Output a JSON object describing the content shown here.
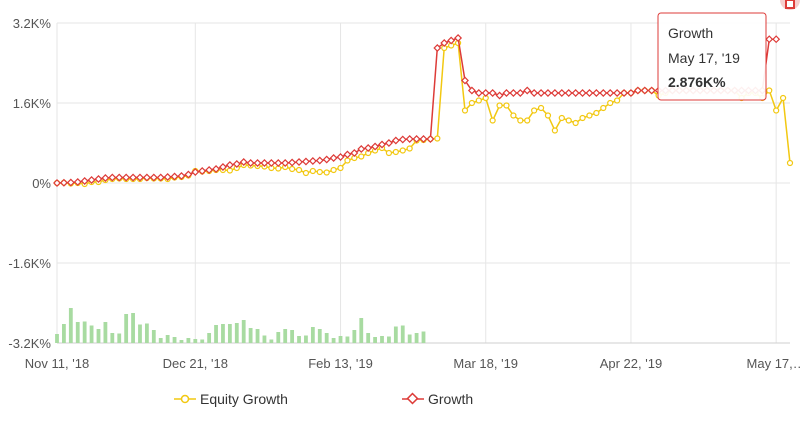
{
  "chart_data": {
    "type": "line",
    "y_ticks": [
      "3.2K%",
      "1.6K%",
      "0%",
      "-1.6K%",
      "-3.2K%"
    ],
    "y_tick_values": [
      3200,
      1600,
      0,
      -1600,
      -3200
    ],
    "ylim": [
      -3200,
      3200
    ],
    "x_ticks": [
      "Nov 11, '18",
      "Dec 21, '18",
      "Feb 13, '19",
      "Mar 18, '19",
      "Apr 22, '19",
      "May 17,…"
    ],
    "x_tick_index": [
      0,
      20,
      41,
      62,
      83,
      104
    ],
    "grid": true,
    "legend_placement": "bottom-center",
    "series": [
      {
        "name": "Equity Growth",
        "color": "#f2c811",
        "values": [
          0,
          5,
          -10,
          0,
          -20,
          20,
          20,
          60,
          80,
          90,
          80,
          80,
          80,
          100,
          90,
          90,
          80,
          110,
          120,
          150,
          240,
          230,
          240,
          260,
          260,
          250,
          300,
          360,
          350,
          340,
          330,
          300,
          290,
          320,
          280,
          260,
          200,
          240,
          220,
          210,
          260,
          300,
          450,
          500,
          530,
          600,
          650,
          700,
          600,
          620,
          650,
          690,
          850,
          860,
          880,
          890,
          2700,
          2750,
          2800,
          1450,
          1600,
          1650,
          1700,
          1250,
          1550,
          1550,
          1350,
          1250,
          1250,
          1450,
          1500,
          1350,
          1050,
          1300,
          1250,
          1200,
          1300,
          1350,
          1400,
          1500,
          1600,
          1650,
          1800,
          1800,
          1850,
          1850,
          1850,
          1750,
          1800,
          1850,
          1850,
          1850,
          1850,
          1850,
          1850,
          1850,
          1850,
          1850,
          1850,
          1700,
          1800,
          1800,
          1700,
          1850,
          1450,
          1700,
          400
        ]
      },
      {
        "name": "Growth",
        "color": "#dd3b38",
        "values": [
          0,
          5,
          10,
          20,
          40,
          60,
          80,
          100,
          110,
          110,
          110,
          110,
          110,
          110,
          110,
          110,
          120,
          130,
          140,
          170,
          220,
          240,
          260,
          280,
          320,
          360,
          380,
          420,
          400,
          400,
          400,
          400,
          400,
          400,
          410,
          420,
          430,
          440,
          450,
          470,
          500,
          520,
          570,
          600,
          680,
          700,
          730,
          770,
          800,
          850,
          870,
          880,
          880,
          880,
          880,
          2700,
          2800,
          2850,
          2900,
          2050,
          1850,
          1800,
          1800,
          1800,
          1750,
          1800,
          1800,
          1800,
          1850,
          1800,
          1800,
          1800,
          1800,
          1800,
          1800,
          1800,
          1800,
          1800,
          1800,
          1800,
          1800,
          1800,
          1800,
          1800,
          1850,
          1850,
          1850,
          1850,
          1850,
          1850,
          1850,
          1850,
          1850,
          1850,
          1850,
          1850,
          1850,
          1850,
          1850,
          1850,
          1850,
          1850,
          1850,
          2876,
          2876
        ]
      },
      {
        "name": "",
        "type": "bar",
        "color": "#a8dba1",
        "values": [
          180,
          380,
          700,
          420,
          430,
          350,
          280,
          420,
          200,
          190,
          580,
          600,
          370,
          390,
          260,
          100,
          160,
          120,
          60,
          100,
          80,
          70,
          200,
          360,
          380,
          380,
          400,
          460,
          300,
          280,
          150,
          70,
          220,
          280,
          260,
          140,
          150,
          320,
          280,
          200,
          100,
          140,
          130,
          260,
          500,
          200,
          120,
          140,
          130,
          330,
          350,
          170,
          200,
          230,
          0,
          0,
          0,
          0,
          0,
          0,
          0,
          0,
          0,
          0,
          0,
          0,
          0,
          0,
          0,
          0,
          0,
          0,
          0,
          0,
          0,
          0,
          0,
          0,
          0,
          0,
          0,
          0,
          0,
          0,
          0,
          0,
          0,
          0,
          0,
          0,
          0,
          0,
          0,
          0,
          0,
          0,
          0,
          0,
          0,
          0,
          0,
          0,
          0,
          0,
          0
        ]
      }
    ]
  },
  "tooltip": {
    "title": "Growth",
    "date": "May 17, '19",
    "value": "2.876K%"
  },
  "legend": {
    "equity_label": "Equity Growth",
    "growth_label": "Growth"
  }
}
